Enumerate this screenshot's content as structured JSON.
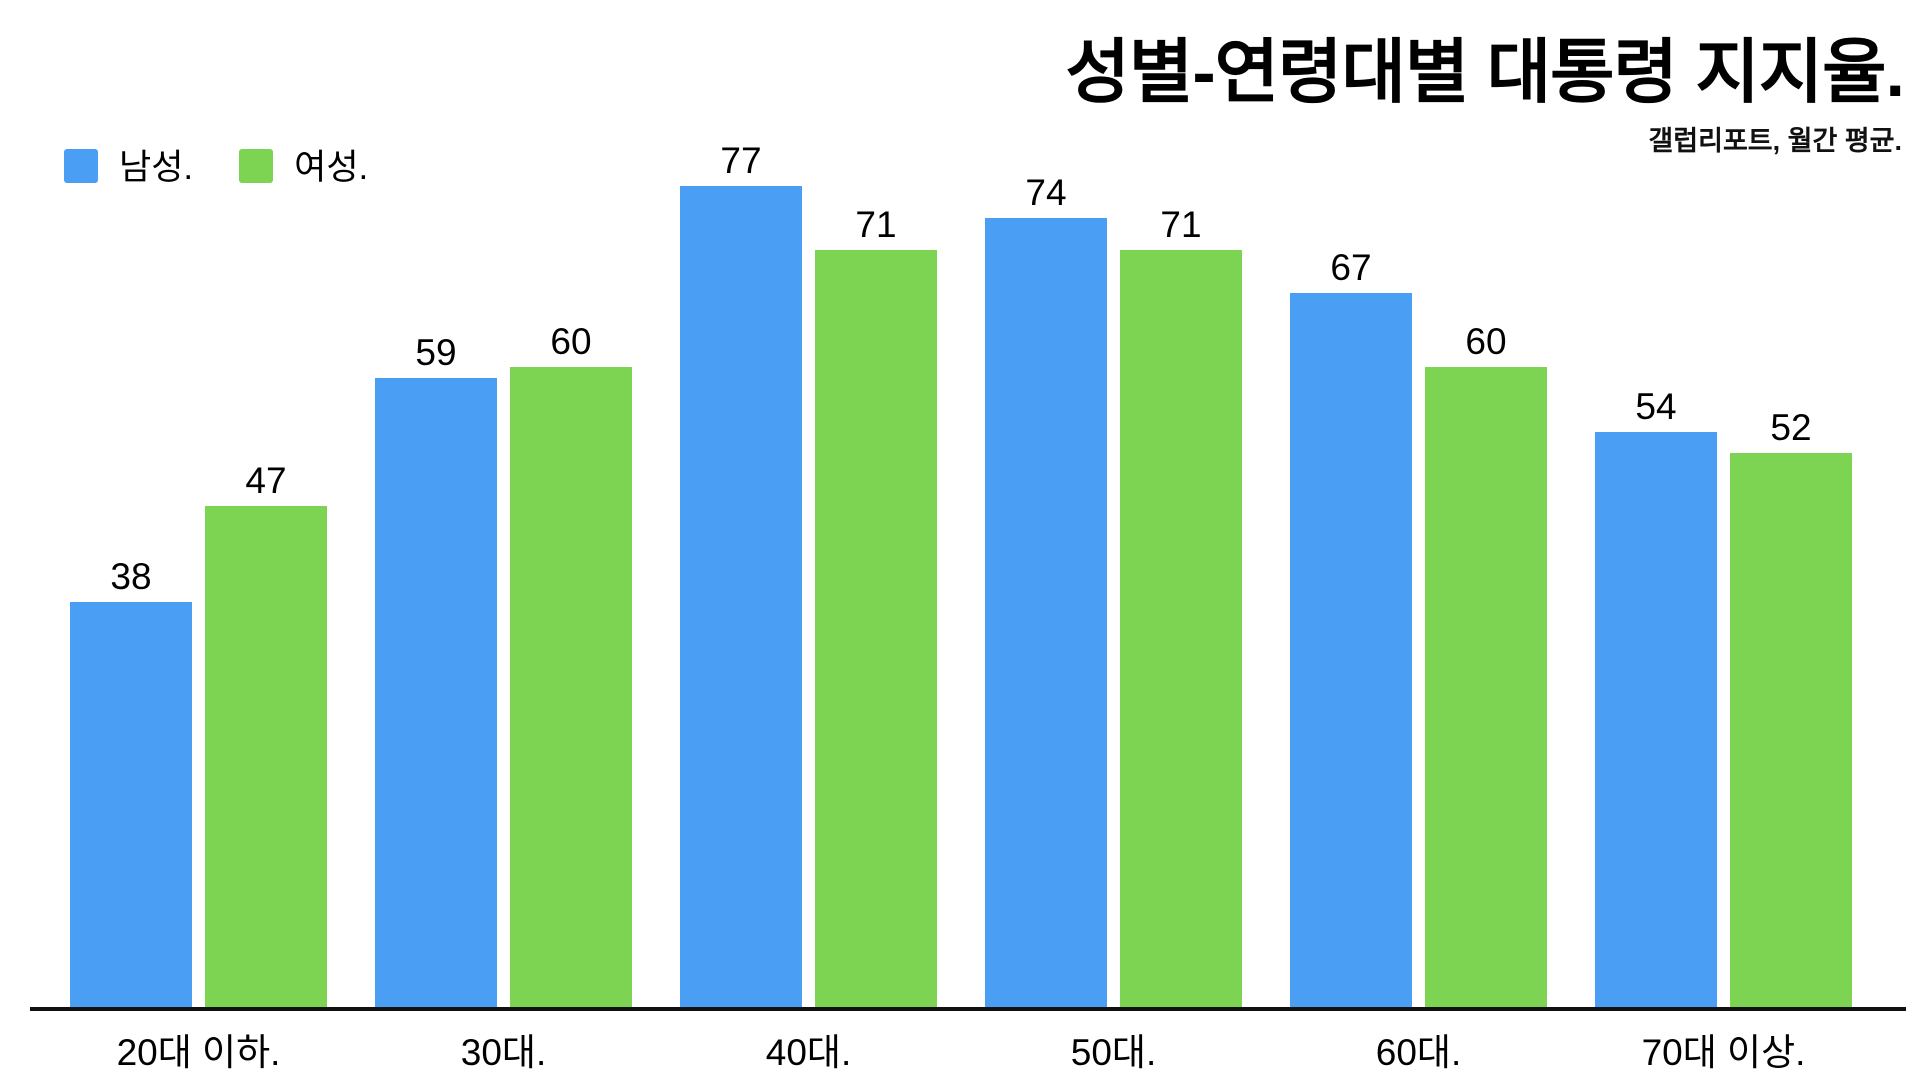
{
  "chart_data": {
    "type": "bar",
    "title": "성별-연령대별 대통령 지지율.",
    "subtitle": "갤럽리포트, 월간 평균.",
    "categories": [
      "20대 이하.",
      "30대.",
      "40대.",
      "50대.",
      "60대.",
      "70대 이상."
    ],
    "series": [
      {
        "name": "남성.",
        "color": "#4A9EF4",
        "values": [
          38,
          59,
          77,
          74,
          67,
          54
        ]
      },
      {
        "name": "여성.",
        "color": "#7DD352",
        "values": [
          47,
          60,
          71,
          71,
          60,
          52
        ]
      }
    ],
    "ylim": [
      0,
      80
    ],
    "grid": false,
    "y_axis_shown": false,
    "legend_position": "top-left",
    "value_labels": true,
    "axis_line_color": "#111111",
    "background_color": "#ffffff"
  }
}
